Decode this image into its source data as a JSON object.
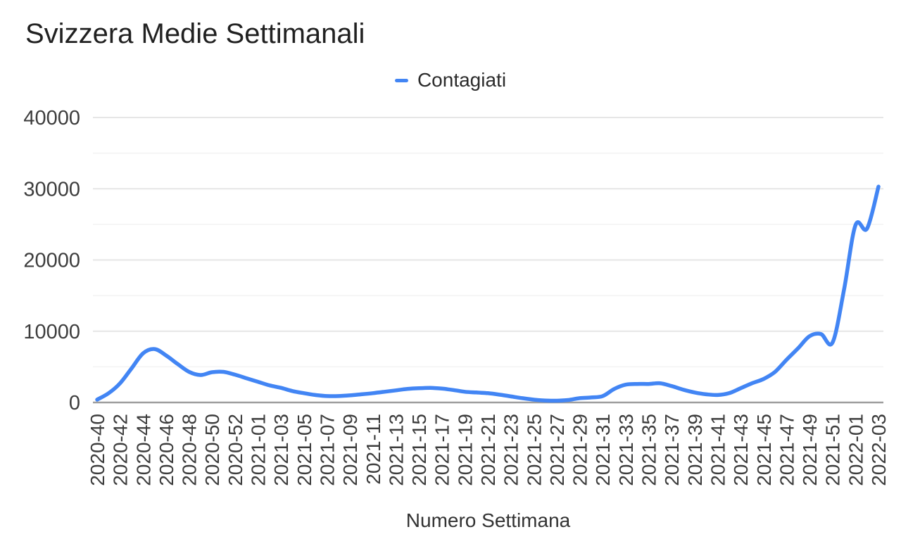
{
  "title": "Svizzera Medie Settimanali",
  "legend": {
    "label": "Contagiati",
    "color": "#4285f4"
  },
  "x_axis_title": "Numero Settimana",
  "colors": {
    "line": "#4285f4",
    "grid_major": "#e6e6e6",
    "grid_minor": "#f3f3f3",
    "axis_line": "#9e9e9e",
    "tick_text": "#3d3d3d",
    "title_text": "#212121"
  },
  "chart_data": {
    "type": "line",
    "title": "Svizzera Medie Settimanali",
    "xlabel": "Numero Settimana",
    "ylabel": "",
    "series_name": "Contagiati",
    "line_color": "#4285f4",
    "legend_position": "top-center",
    "grid": "horizontal",
    "smooth": true,
    "ylim": [
      0,
      40000
    ],
    "y_ticks": [
      0,
      10000,
      20000,
      30000,
      40000
    ],
    "y_minor_ticks": [
      5000,
      15000,
      25000,
      35000
    ],
    "x_tick_step": 2,
    "x_tick_rotation": -90,
    "categories": [
      "2020-40",
      "2020-41",
      "2020-42",
      "2020-43",
      "2020-44",
      "2020-45",
      "2020-46",
      "2020-47",
      "2020-48",
      "2020-49",
      "2020-50",
      "2020-51",
      "2020-52",
      "2020-53",
      "2021-01",
      "2021-02",
      "2021-03",
      "2021-04",
      "2021-05",
      "2021-06",
      "2021-07",
      "2021-08",
      "2021-09",
      "2021-10",
      "2021-11",
      "2021-12",
      "2021-13",
      "2021-14",
      "2021-15",
      "2021-16",
      "2021-17",
      "2021-18",
      "2021-19",
      "2021-20",
      "2021-21",
      "2021-22",
      "2021-23",
      "2021-24",
      "2021-25",
      "2021-26",
      "2021-27",
      "2021-28",
      "2021-29",
      "2021-30",
      "2021-31",
      "2021-32",
      "2021-33",
      "2021-34",
      "2021-35",
      "2021-36",
      "2021-37",
      "2021-38",
      "2021-39",
      "2021-40",
      "2021-41",
      "2021-42",
      "2021-43",
      "2021-44",
      "2021-45",
      "2021-46",
      "2021-47",
      "2021-48",
      "2021-49",
      "2021-50",
      "2021-51",
      "2021-52",
      "2022-01",
      "2022-02",
      "2022-03"
    ],
    "values": [
      400,
      1300,
      2700,
      4800,
      6900,
      7500,
      6600,
      5400,
      4300,
      3850,
      4250,
      4300,
      3900,
      3400,
      2900,
      2400,
      2050,
      1600,
      1300,
      1050,
      900,
      900,
      1000,
      1150,
      1300,
      1500,
      1700,
      1900,
      2000,
      2050,
      1950,
      1750,
      1500,
      1400,
      1300,
      1100,
      850,
      600,
      400,
      280,
      250,
      350,
      600,
      700,
      900,
      1900,
      2500,
      2600,
      2600,
      2700,
      2300,
      1800,
      1400,
      1150,
      1050,
      1300,
      2000,
      2700,
      3300,
      4300,
      6000,
      7600,
      9300,
      9600,
      8400,
      15800,
      24900,
      24400,
      30300
    ]
  }
}
